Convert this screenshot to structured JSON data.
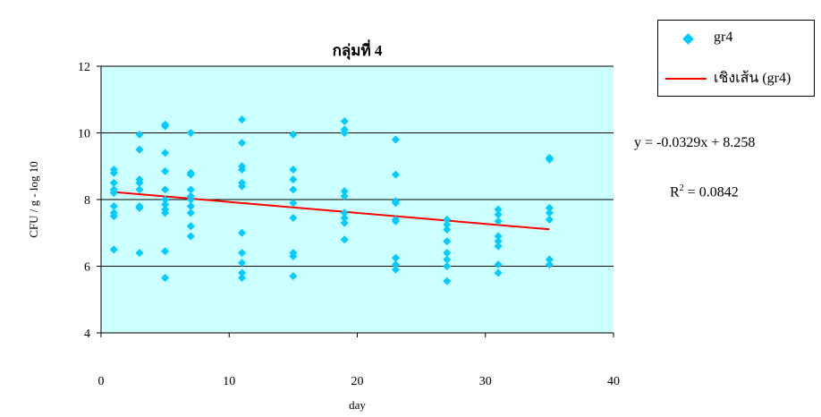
{
  "chart_data": {
    "type": "scatter",
    "title": "กลุ่มที่ 4",
    "xlabel": "day",
    "ylabel": "CFU / g - log 10",
    "xlim": [
      0,
      40
    ],
    "ylim": [
      4,
      12
    ],
    "x_ticks": [
      "0",
      "10",
      "20",
      "30",
      "40"
    ],
    "y_ticks": [
      "4",
      "6",
      "8",
      "10",
      "12"
    ],
    "grid": "horizontal",
    "background_color": "#CCFFFF",
    "legend_position": "top-right",
    "series": [
      {
        "name": "gr4",
        "color": "#00CCFF",
        "marker": "diamond",
        "points": [
          [
            1,
            8.9
          ],
          [
            1,
            8.8
          ],
          [
            1,
            8.5
          ],
          [
            1,
            8.3
          ],
          [
            1,
            8.2
          ],
          [
            1,
            7.8
          ],
          [
            1,
            7.6
          ],
          [
            1,
            7.5
          ],
          [
            1,
            6.5
          ],
          [
            3,
            9.95
          ],
          [
            3,
            9.5
          ],
          [
            3,
            8.6
          ],
          [
            3,
            8.5
          ],
          [
            3,
            8.3
          ],
          [
            3,
            7.8
          ],
          [
            3,
            7.75
          ],
          [
            3,
            6.4
          ],
          [
            5,
            10.25
          ],
          [
            5,
            10.2
          ],
          [
            5,
            9.4
          ],
          [
            5,
            8.85
          ],
          [
            5,
            8.3
          ],
          [
            5,
            8.0
          ],
          [
            5,
            7.85
          ],
          [
            5,
            7.7
          ],
          [
            5,
            7.6
          ],
          [
            5,
            6.45
          ],
          [
            5,
            5.65
          ],
          [
            7,
            10.0
          ],
          [
            7,
            8.8
          ],
          [
            7,
            8.75
          ],
          [
            7,
            8.3
          ],
          [
            7,
            8.1
          ],
          [
            7,
            8.0
          ],
          [
            7,
            7.8
          ],
          [
            7,
            7.6
          ],
          [
            7,
            7.2
          ],
          [
            7,
            6.9
          ],
          [
            11,
            10.4
          ],
          [
            11,
            9.7
          ],
          [
            11,
            9.0
          ],
          [
            11,
            8.9
          ],
          [
            11,
            8.5
          ],
          [
            11,
            8.4
          ],
          [
            11,
            7.0
          ],
          [
            11,
            6.4
          ],
          [
            11,
            6.1
          ],
          [
            11,
            5.8
          ],
          [
            11,
            5.65
          ],
          [
            15,
            9.95
          ],
          [
            15,
            8.9
          ],
          [
            15,
            8.6
          ],
          [
            15,
            8.3
          ],
          [
            15,
            7.9
          ],
          [
            15,
            7.45
          ],
          [
            15,
            6.4
          ],
          [
            15,
            6.3
          ],
          [
            15,
            5.7
          ],
          [
            19,
            10.35
          ],
          [
            19,
            10.1
          ],
          [
            19,
            10.0
          ],
          [
            19,
            8.25
          ],
          [
            19,
            8.1
          ],
          [
            19,
            7.6
          ],
          [
            19,
            7.45
          ],
          [
            19,
            7.3
          ],
          [
            19,
            6.8
          ],
          [
            23,
            9.8
          ],
          [
            23,
            8.75
          ],
          [
            23,
            7.95
          ],
          [
            23,
            7.9
          ],
          [
            23,
            7.4
          ],
          [
            23,
            7.35
          ],
          [
            23,
            6.25
          ],
          [
            23,
            6.05
          ],
          [
            23,
            5.9
          ],
          [
            27,
            7.4
          ],
          [
            27,
            7.25
          ],
          [
            27,
            7.1
          ],
          [
            27,
            6.75
          ],
          [
            27,
            6.4
          ],
          [
            27,
            6.2
          ],
          [
            27,
            6.0
          ],
          [
            27,
            5.55
          ],
          [
            31,
            7.7
          ],
          [
            31,
            7.55
          ],
          [
            31,
            7.35
          ],
          [
            31,
            6.9
          ],
          [
            31,
            6.75
          ],
          [
            31,
            6.6
          ],
          [
            31,
            6.05
          ],
          [
            31,
            5.8
          ],
          [
            35,
            9.25
          ],
          [
            35,
            9.2
          ],
          [
            35,
            7.75
          ],
          [
            35,
            7.6
          ],
          [
            35,
            7.4
          ],
          [
            35,
            6.2
          ],
          [
            35,
            6.05
          ]
        ]
      },
      {
        "name": "เชิงเส้น (gr4)",
        "color": "#FF0000",
        "style": "line",
        "points": [
          [
            1,
            8.225
          ],
          [
            35,
            7.106
          ]
        ]
      }
    ],
    "annotations": {
      "equation": "y = -0.0329x + 8.258",
      "r2_base": "R",
      "r2_exp": "2",
      "r2_value": " = 0.0842"
    }
  }
}
